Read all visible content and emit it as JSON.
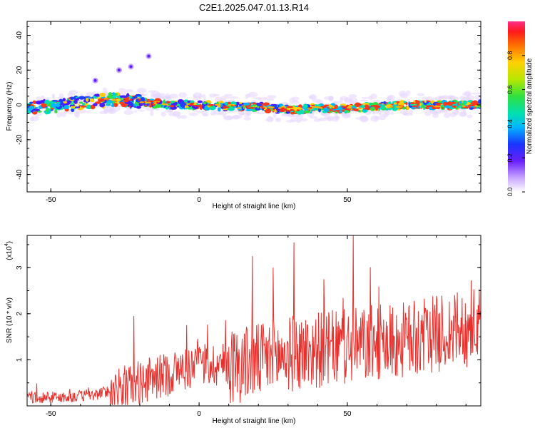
{
  "title": "C2E1.2025.047.01.13.R14",
  "chart_data": [
    {
      "type": "heatmap",
      "xlabel": "Height of straight line (km)",
      "ylabel": "Frequency (Hz)",
      "xlim": [
        -58,
        95
      ],
      "ylim": [
        -50,
        48
      ],
      "xticks": [
        -50,
        0,
        50
      ],
      "yticks": [
        -40,
        -20,
        0,
        20,
        40
      ],
      "colorbar": {
        "label": "Normalized spectral amplitude",
        "range": [
          0.0,
          1.0
        ],
        "ticks": [
          "0.0",
          "0.2",
          "0.4",
          "0.6",
          "0.8"
        ],
        "tick_values": [
          0.0,
          0.2,
          0.4,
          0.6,
          0.8
        ]
      },
      "ridge": {
        "description_free": true,
        "x": [
          -58,
          -50,
          -40,
          -30,
          -20,
          -10,
          0,
          10,
          20,
          30,
          40,
          50,
          60,
          70,
          80,
          95
        ],
        "freq": [
          -2,
          -1,
          1,
          3,
          2,
          0,
          0,
          -1,
          -1,
          -3,
          -2,
          -2,
          -1,
          0,
          0,
          0
        ]
      },
      "isolated_blobs": [
        {
          "x": -35,
          "freq": 14
        },
        {
          "x": -27,
          "freq": 20
        },
        {
          "x": -23,
          "freq": 22
        },
        {
          "x": -17,
          "freq": 28
        }
      ]
    },
    {
      "type": "line",
      "xlabel": "Height of straight line (km)",
      "ylabel": "SNR (10 * v/v)",
      "multiplier_label": "(x10",
      "multiplier_exp": "4",
      "xlim": [
        -58,
        95
      ],
      "ylim": [
        0,
        3.7
      ],
      "xticks": [
        -50,
        0,
        50
      ],
      "yticks": [
        1,
        2,
        3
      ],
      "color": "#e8302c",
      "trend": {
        "x": [
          -58,
          -45,
          -35,
          -30,
          -20,
          -10,
          0,
          10,
          20,
          30,
          40,
          50,
          60,
          70,
          80,
          90,
          95
        ],
        "y": [
          0.2,
          0.2,
          0.25,
          0.35,
          0.55,
          0.75,
          0.95,
          0.95,
          1.05,
          1.2,
          1.3,
          1.35,
          1.45,
          1.5,
          1.65,
          1.75,
          1.85
        ]
      },
      "peaks": [
        {
          "x": -22,
          "y": 1.95
        },
        {
          "x": 18,
          "y": 3.25
        },
        {
          "x": 25,
          "y": 3.0
        },
        {
          "x": 32,
          "y": 3.55
        },
        {
          "x": 42,
          "y": 2.75
        },
        {
          "x": 52,
          "y": 3.7
        },
        {
          "x": 95,
          "y": 2.6
        }
      ]
    }
  ]
}
